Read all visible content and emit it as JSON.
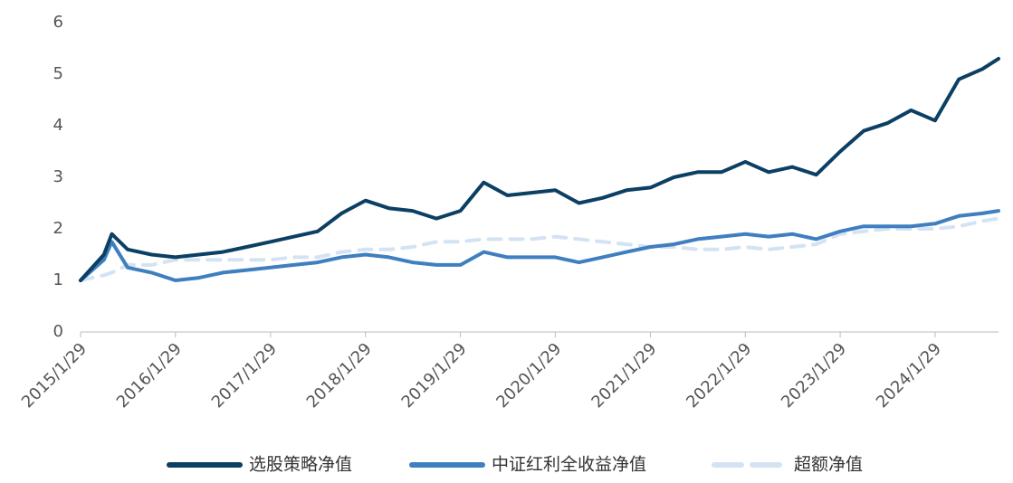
{
  "chart_data": {
    "type": "line",
    "x": [
      "2015/1/29",
      "2015/4/29",
      "2015/5/29",
      "2015/7/29",
      "2015/10/29",
      "2016/1/29",
      "2016/4/29",
      "2016/7/29",
      "2016/10/29",
      "2017/1/29",
      "2017/4/29",
      "2017/7/29",
      "2017/10/29",
      "2018/1/29",
      "2018/4/29",
      "2018/7/29",
      "2018/10/29",
      "2019/1/29",
      "2019/4/29",
      "2019/7/29",
      "2019/10/29",
      "2020/1/29",
      "2020/4/29",
      "2020/7/29",
      "2020/10/29",
      "2021/1/29",
      "2021/4/29",
      "2021/7/29",
      "2021/10/29",
      "2022/1/29",
      "2022/4/29",
      "2022/7/29",
      "2022/10/29",
      "2023/1/29",
      "2023/4/29",
      "2023/7/29",
      "2023/10/29",
      "2024/1/29",
      "2024/4/29",
      "2024/7/29",
      "2024/9/29"
    ],
    "series": [
      {
        "name": "选股策略净值",
        "color": "#0b3f63",
        "style": "solid",
        "values": [
          1.0,
          1.5,
          1.9,
          1.6,
          1.5,
          1.45,
          1.5,
          1.55,
          1.65,
          1.75,
          1.85,
          1.95,
          2.3,
          2.55,
          2.4,
          2.35,
          2.2,
          2.35,
          2.9,
          2.65,
          2.7,
          2.75,
          2.5,
          2.6,
          2.75,
          2.8,
          3.0,
          3.1,
          3.1,
          3.3,
          3.1,
          3.2,
          3.05,
          3.5,
          3.9,
          4.05,
          4.3,
          4.1,
          4.9,
          5.1,
          5.3
        ]
      },
      {
        "name": "中证红利全收益净值",
        "color": "#3f7fc0",
        "style": "solid",
        "values": [
          1.0,
          1.4,
          1.75,
          1.25,
          1.15,
          1.0,
          1.05,
          1.15,
          1.2,
          1.25,
          1.3,
          1.35,
          1.45,
          1.5,
          1.45,
          1.35,
          1.3,
          1.3,
          1.55,
          1.45,
          1.45,
          1.45,
          1.35,
          1.45,
          1.55,
          1.65,
          1.7,
          1.8,
          1.85,
          1.9,
          1.85,
          1.9,
          1.8,
          1.95,
          2.05,
          2.05,
          2.05,
          2.1,
          2.25,
          2.3,
          2.35
        ]
      },
      {
        "name": "超额净值",
        "color": "#d3e3f3",
        "style": "dashed",
        "values": [
          1.0,
          1.1,
          1.15,
          1.3,
          1.3,
          1.4,
          1.4,
          1.4,
          1.4,
          1.4,
          1.45,
          1.45,
          1.55,
          1.6,
          1.6,
          1.65,
          1.75,
          1.75,
          1.8,
          1.8,
          1.8,
          1.85,
          1.8,
          1.75,
          1.7,
          1.65,
          1.65,
          1.6,
          1.6,
          1.65,
          1.6,
          1.65,
          1.7,
          1.9,
          1.95,
          2.0,
          2.0,
          2.0,
          2.05,
          2.15,
          2.2
        ]
      }
    ],
    "xlim": [
      "2015/1/29",
      "2024/9/29"
    ],
    "xticks": [
      "2015/1/29",
      "2016/1/29",
      "2017/1/29",
      "2018/1/29",
      "2019/1/29",
      "2020/1/29",
      "2021/1/29",
      "2022/1/29",
      "2023/1/29",
      "2024/1/29"
    ],
    "ylim": [
      0,
      6
    ],
    "yticks": [
      0,
      1,
      2,
      3,
      4,
      5,
      6
    ],
    "legend": "bottom"
  }
}
